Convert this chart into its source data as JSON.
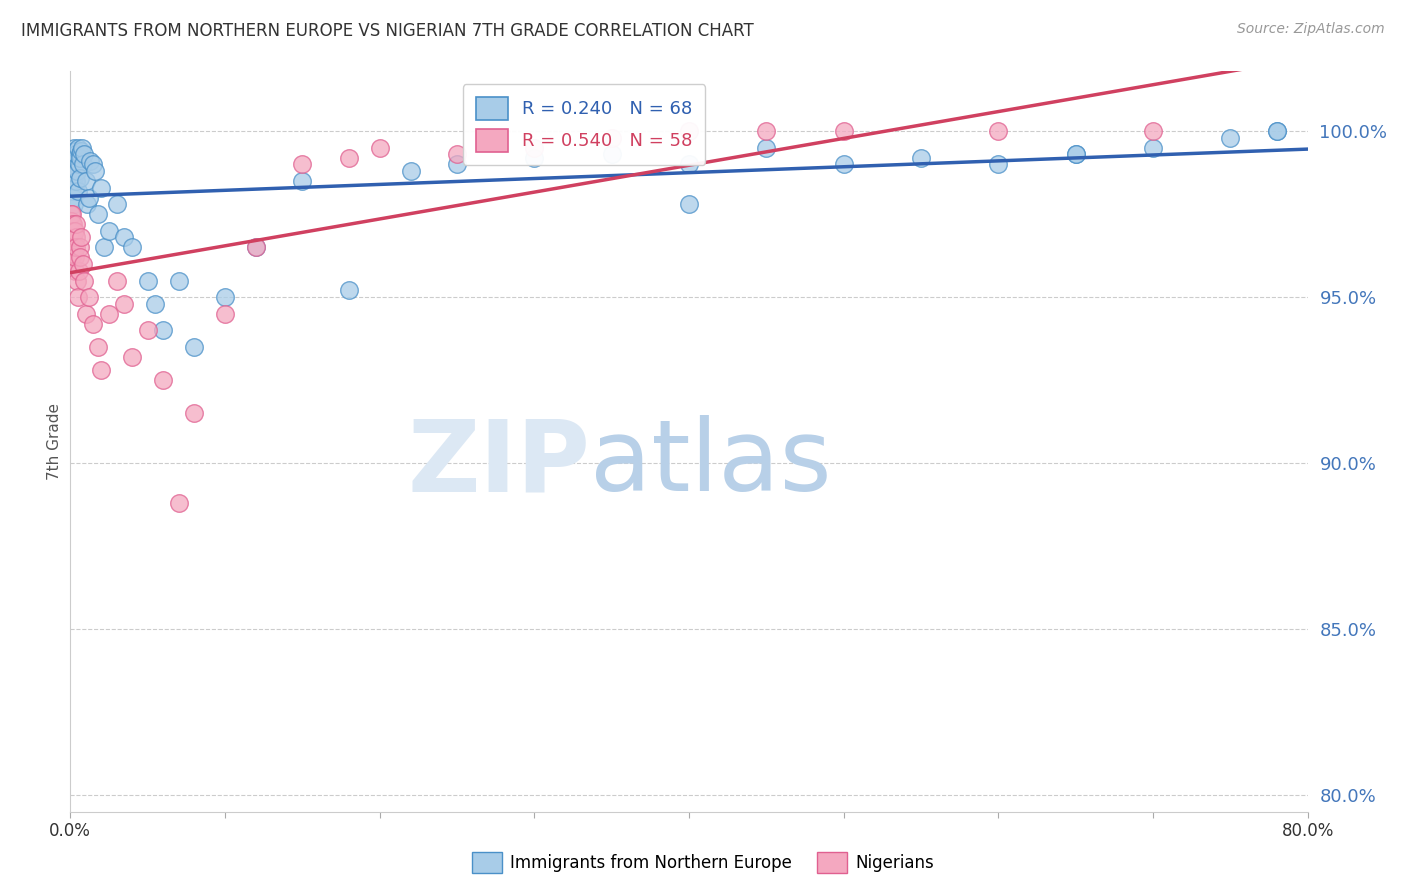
{
  "title": "IMMIGRANTS FROM NORTHERN EUROPE VS NIGERIAN 7TH GRADE CORRELATION CHART",
  "source": "Source: ZipAtlas.com",
  "ylabel": "7th Grade",
  "yticks": [
    80.0,
    85.0,
    90.0,
    95.0,
    100.0
  ],
  "ytick_labels": [
    "80.0%",
    "85.0%",
    "90.0%",
    "95.0%",
    "100.0%"
  ],
  "xlim": [
    0.0,
    80.0
  ],
  "ylim": [
    79.5,
    101.8
  ],
  "blue_label": "Immigrants from Northern Europe",
  "pink_label": "Nigerians",
  "blue_R": 0.24,
  "blue_N": 68,
  "pink_R": 0.54,
  "pink_N": 58,
  "blue_color": "#a8cce8",
  "pink_color": "#f4a8c0",
  "blue_edge_color": "#4a90c8",
  "pink_edge_color": "#e06090",
  "blue_line_color": "#3060b0",
  "pink_line_color": "#d04060",
  "watermark_zip_color": "#dce8f4",
  "watermark_atlas_color": "#b8d0e8",
  "background_color": "#ffffff",
  "grid_color": "#cccccc",
  "title_color": "#333333",
  "ytick_color": "#4477bb",
  "xtick_color": "#333333",
  "blue_x": [
    0.05,
    0.08,
    0.1,
    0.12,
    0.15,
    0.15,
    0.18,
    0.2,
    0.22,
    0.25,
    0.25,
    0.28,
    0.3,
    0.3,
    0.32,
    0.35,
    0.38,
    0.4,
    0.4,
    0.45,
    0.5,
    0.5,
    0.55,
    0.6,
    0.6,
    0.65,
    0.7,
    0.75,
    0.8,
    0.9,
    1.0,
    1.1,
    1.2,
    1.3,
    1.5,
    1.6,
    1.8,
    2.0,
    2.2,
    2.5,
    3.0,
    3.5,
    4.0,
    5.0,
    5.5,
    6.0,
    7.0,
    8.0,
    10.0,
    12.0,
    15.0,
    18.0,
    22.0,
    25.0,
    30.0,
    35.0,
    40.0,
    45.0,
    50.0,
    55.0,
    60.0,
    65.0,
    70.0,
    75.0,
    78.0,
    40.0,
    65.0,
    78.0
  ],
  "blue_y": [
    97.5,
    98.2,
    98.8,
    99.0,
    99.2,
    98.5,
    99.3,
    98.0,
    99.1,
    97.8,
    99.5,
    98.9,
    99.0,
    98.3,
    99.4,
    98.7,
    99.1,
    98.5,
    99.3,
    98.8,
    99.5,
    98.2,
    99.0,
    99.3,
    98.6,
    99.2,
    99.4,
    99.5,
    99.0,
    99.3,
    98.5,
    97.8,
    98.0,
    99.1,
    99.0,
    98.8,
    97.5,
    98.3,
    96.5,
    97.0,
    97.8,
    96.8,
    96.5,
    95.5,
    94.8,
    94.0,
    95.5,
    93.5,
    95.0,
    96.5,
    98.5,
    95.2,
    98.8,
    99.0,
    99.2,
    99.3,
    99.0,
    99.5,
    99.0,
    99.2,
    99.0,
    99.3,
    99.5,
    99.8,
    100.0,
    97.8,
    99.3,
    100.0
  ],
  "pink_x": [
    0.02,
    0.04,
    0.05,
    0.06,
    0.07,
    0.08,
    0.08,
    0.1,
    0.1,
    0.12,
    0.12,
    0.14,
    0.15,
    0.16,
    0.18,
    0.2,
    0.22,
    0.25,
    0.28,
    0.3,
    0.32,
    0.35,
    0.38,
    0.4,
    0.45,
    0.5,
    0.55,
    0.6,
    0.65,
    0.7,
    0.8,
    0.9,
    1.0,
    1.2,
    1.5,
    1.8,
    2.0,
    2.5,
    3.0,
    3.5,
    4.0,
    5.0,
    6.0,
    7.0,
    8.0,
    10.0,
    12.0,
    15.0,
    18.0,
    20.0,
    25.0,
    30.0,
    35.0,
    40.0,
    45.0,
    50.0,
    60.0,
    70.0
  ],
  "pink_y": [
    97.0,
    97.5,
    96.8,
    97.3,
    96.5,
    97.0,
    96.2,
    97.2,
    96.0,
    97.5,
    96.8,
    96.5,
    97.0,
    96.3,
    96.8,
    97.2,
    97.0,
    96.5,
    95.8,
    96.2,
    97.0,
    96.8,
    97.2,
    96.5,
    95.5,
    95.0,
    95.8,
    96.5,
    96.2,
    96.8,
    96.0,
    95.5,
    94.5,
    95.0,
    94.2,
    93.5,
    92.8,
    94.5,
    95.5,
    94.8,
    93.2,
    94.0,
    92.5,
    88.8,
    91.5,
    94.5,
    96.5,
    99.0,
    99.2,
    99.5,
    99.3,
    99.5,
    99.8,
    100.0,
    100.0,
    100.0,
    100.0,
    100.0
  ]
}
